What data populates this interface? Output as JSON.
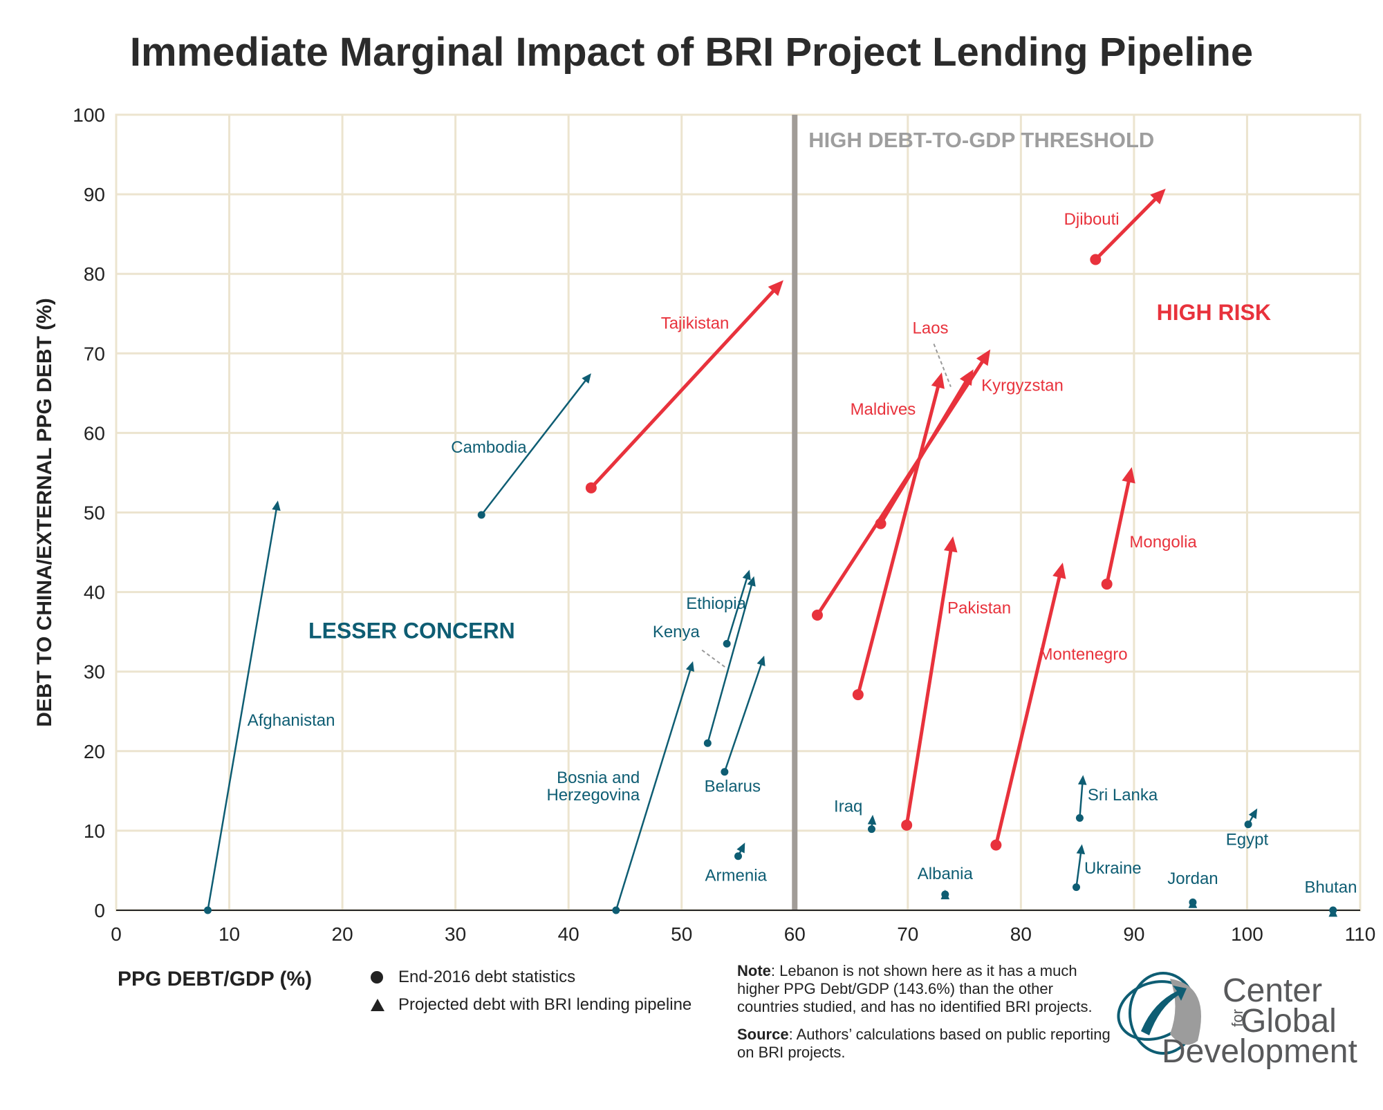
{
  "title": "Immediate Marginal Impact of BRI Project Lending Pipeline",
  "colors": {
    "red": "#e8323c",
    "teal": "#0e5d73",
    "grid": "#ece4cf",
    "threshold": "#a19c97",
    "threshold_text": "#9e9e9e"
  },
  "chart_data": {
    "type": "scatter",
    "xlabel": "PPG DEBT/GDP (%)",
    "ylabel": "DEBT TO CHINA/EXTERNAL PPG DEBT (%)",
    "xlim": [
      0,
      110
    ],
    "ylim": [
      0,
      100
    ],
    "x_ticks": [
      "0",
      "10",
      "20",
      "30",
      "40",
      "50",
      "60",
      "70",
      "80",
      "90",
      "100",
      "110"
    ],
    "y_ticks": [
      "0",
      "10",
      "20",
      "30",
      "40",
      "50",
      "60",
      "70",
      "80",
      "90",
      "100"
    ],
    "grid": true,
    "threshold_x": 60,
    "threshold_label": "HIGH DEBT-TO-GDP THRESHOLD",
    "regions": {
      "low": "LESSER CONCERN",
      "high": "HIGH RISK"
    },
    "series": [
      {
        "name": "Afghanistan",
        "group": "low",
        "x": 8.1,
        "y": 0.0,
        "x2": 14.3,
        "y2": 51.5
      },
      {
        "name": "Cambodia",
        "group": "low",
        "x": 32.3,
        "y": 49.7,
        "x2": 42.0,
        "y2": 67.5
      },
      {
        "name": "Tajikistan",
        "group": "high",
        "x": 42.0,
        "y": 53.1,
        "x2": 59.0,
        "y2": 79.2
      },
      {
        "name": "Bosnia and Herzegovina",
        "group": "low",
        "x": 44.2,
        "y": 0.0,
        "x2": 51.0,
        "y2": 31.3
      },
      {
        "name": "Ethiopia",
        "group": "low",
        "x": 54.0,
        "y": 33.5,
        "x2": 56.0,
        "y2": 42.8
      },
      {
        "name": "Kenya",
        "group": "low",
        "x": 52.3,
        "y": 21.0,
        "x2": 56.4,
        "y2": 42.0
      },
      {
        "name": "Belarus",
        "group": "low",
        "x": 53.8,
        "y": 17.4,
        "x2": 57.3,
        "y2": 32.0
      },
      {
        "name": "Armenia",
        "group": "low",
        "x": 55.0,
        "y": 6.8,
        "x2": 55.6,
        "y2": 8.5
      },
      {
        "name": "Kyrgyzstan",
        "group": "high",
        "x": 62.0,
        "y": 37.1,
        "x2": 77.3,
        "y2": 70.5
      },
      {
        "name": "Laos",
        "group": "high",
        "x": 67.6,
        "y": 48.6,
        "x2": 75.8,
        "y2": 68.0
      },
      {
        "name": "Maldives",
        "group": "high",
        "x": 65.6,
        "y": 27.1,
        "x2": 73.0,
        "y2": 67.6
      },
      {
        "name": "Pakistan",
        "group": "high",
        "x": 69.9,
        "y": 10.7,
        "x2": 74.0,
        "y2": 47.0
      },
      {
        "name": "Iraq",
        "group": "low",
        "x": 66.8,
        "y": 10.2,
        "x2": 66.9,
        "y2": 12.0
      },
      {
        "name": "Albania",
        "group": "low",
        "x": 73.3,
        "y": 2.0,
        "x2": 73.3,
        "y2": 2.6
      },
      {
        "name": "Montenegro",
        "group": "high",
        "x": 77.8,
        "y": 8.2,
        "x2": 83.7,
        "y2": 43.7
      },
      {
        "name": "Sri Lanka",
        "group": "low",
        "x": 85.2,
        "y": 11.6,
        "x2": 85.5,
        "y2": 17.0
      },
      {
        "name": "Ukraine",
        "group": "low",
        "x": 84.9,
        "y": 2.9,
        "x2": 85.4,
        "y2": 8.3
      },
      {
        "name": "Djibouti",
        "group": "high",
        "x": 86.6,
        "y": 81.8,
        "x2": 92.8,
        "y2": 90.7
      },
      {
        "name": "Mongolia",
        "group": "high",
        "x": 87.6,
        "y": 41.0,
        "x2": 89.8,
        "y2": 55.7
      },
      {
        "name": "Jordan",
        "group": "low",
        "x": 95.2,
        "y": 1.0,
        "x2": 95.2,
        "y2": 1.5
      },
      {
        "name": "Egypt",
        "group": "low",
        "x": 100.1,
        "y": 10.8,
        "x2": 100.9,
        "y2": 12.8
      },
      {
        "name": "Bhutan",
        "group": "low",
        "x": 107.6,
        "y": 0.0,
        "x2": 107.6,
        "y2": 0.4
      }
    ]
  },
  "legend": {
    "circle_label": "End-2016 debt statistics",
    "triangle_label": "Projected debt with BRI lending pipeline"
  },
  "notes": {
    "note_label": "Note",
    "note_text": ": Lebanon is not shown here as it has a much higher PPG Debt/GDP (143.6%) than the other countries studied, and has no identified BRI projects.",
    "source_label": "Source",
    "source_text": ": Authors’ calculations based on public reporting on BRI projects."
  },
  "logo": {
    "line1": "Center",
    "for": "for",
    "line2": "Global",
    "line3": "Development"
  }
}
